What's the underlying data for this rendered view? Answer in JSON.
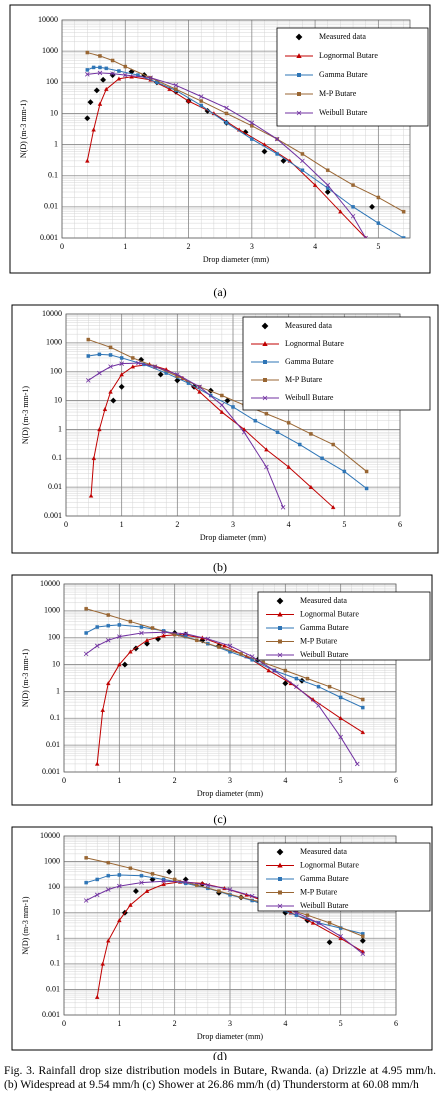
{
  "chart_data": [
    {
      "type": "line",
      "panel_label": "(a)",
      "xlabel": "Drop diameter (mm)",
      "ylabel": "N(D) (m-3 mm-1)",
      "xlim": [
        0,
        5.5
      ],
      "xticks": [
        0,
        1,
        2,
        3,
        4,
        5
      ],
      "ylim": [
        0.001,
        10000
      ],
      "yticks": [
        10000,
        1000,
        100,
        10,
        1,
        0.1,
        0.01,
        0.001
      ],
      "log_y": true,
      "grid": true,
      "legend": "upper right",
      "series": [
        {
          "name": "Measured data",
          "color": "#000000",
          "marker": "diamond",
          "line": false,
          "x": [
            0.4,
            0.45,
            0.55,
            0.65,
            0.8,
            1.1,
            1.3,
            1.5,
            1.8,
            2.0,
            2.3,
            2.6,
            2.9,
            3.2,
            3.5,
            4.2,
            4.9
          ],
          "values": [
            7,
            23,
            55,
            120,
            170,
            220,
            170,
            100,
            50,
            25,
            12,
            5,
            2.5,
            0.6,
            0.3,
            0.03,
            0.01
          ]
        },
        {
          "name": "Lognormal Butare",
          "color": "#c00000",
          "marker": "triangle",
          "line": true,
          "x": [
            0.4,
            0.5,
            0.6,
            0.7,
            0.9,
            1.1,
            1.4,
            1.7,
            2.0,
            2.4,
            2.8,
            3.2,
            3.6,
            4.0,
            4.4,
            4.8
          ],
          "values": [
            0.3,
            3,
            20,
            60,
            130,
            150,
            120,
            60,
            25,
            10,
            3,
            1,
            0.3,
            0.05,
            0.007,
            0.001
          ]
        },
        {
          "name": "Gamma Butare",
          "color": "#2e75b6",
          "marker": "square",
          "line": true,
          "x": [
            0.4,
            0.5,
            0.6,
            0.7,
            0.9,
            1.2,
            1.5,
            1.8,
            2.2,
            2.6,
            3.0,
            3.4,
            3.8,
            4.2,
            4.6,
            5.0,
            5.4
          ],
          "values": [
            250,
            300,
            300,
            280,
            230,
            170,
            100,
            55,
            18,
            5,
            1.5,
            0.5,
            0.15,
            0.04,
            0.01,
            0.003,
            0.001
          ]
        },
        {
          "name": "M-P Butare",
          "color": "#996633",
          "marker": "square",
          "line": true,
          "x": [
            0.4,
            0.6,
            0.8,
            1.0,
            1.4,
            1.8,
            2.2,
            2.6,
            3.0,
            3.4,
            3.8,
            4.2,
            4.6,
            5.0,
            5.4
          ],
          "values": [
            900,
            700,
            500,
            320,
            140,
            60,
            25,
            10,
            4,
            1.5,
            0.5,
            0.15,
            0.05,
            0.02,
            0.007
          ]
        },
        {
          "name": "Weibull Butare",
          "color": "#7030a0",
          "marker": "cross",
          "line": true,
          "x": [
            0.4,
            0.6,
            0.8,
            1.0,
            1.4,
            1.8,
            2.2,
            2.6,
            3.0,
            3.4,
            3.8,
            4.2,
            4.6,
            4.8
          ],
          "values": [
            180,
            200,
            190,
            170,
            140,
            80,
            35,
            15,
            5,
            1.5,
            0.3,
            0.05,
            0.005,
            0.001
          ]
        }
      ]
    },
    {
      "type": "line",
      "panel_label": "(b)",
      "xlabel": "Drop diameter (mm)",
      "ylabel": "N(D) (m-3 mm-1)",
      "xlim": [
        0,
        6
      ],
      "xticks": [
        0,
        1,
        2,
        3,
        4,
        5,
        6
      ],
      "ylim": [
        0.001,
        10000
      ],
      "yticks": [
        10000,
        1000,
        100,
        10,
        1,
        0.1,
        0.01,
        0.001
      ],
      "log_y": true,
      "grid": true,
      "legend": "upper right",
      "series": [
        {
          "name": "Measured data",
          "color": "#000000",
          "marker": "diamond",
          "line": false,
          "x": [
            0.85,
            1.0,
            1.35,
            1.7,
            2.0,
            2.3,
            2.6,
            2.9
          ],
          "values": [
            10,
            30,
            260,
            80,
            50,
            30,
            22,
            10
          ]
        },
        {
          "name": "Lognormal Butare",
          "color": "#c00000",
          "marker": "triangle",
          "line": true,
          "x": [
            0.45,
            0.5,
            0.6,
            0.7,
            0.8,
            1.0,
            1.2,
            1.5,
            1.8,
            2.1,
            2.4,
            2.8,
            3.2,
            3.6,
            4.0,
            4.4,
            4.8
          ],
          "values": [
            0.005,
            0.1,
            1,
            5,
            20,
            80,
            150,
            180,
            120,
            60,
            20,
            4,
            1,
            0.2,
            0.05,
            0.01,
            0.002
          ]
        },
        {
          "name": "Gamma Butare",
          "color": "#2e75b6",
          "marker": "square",
          "line": true,
          "x": [
            0.4,
            0.6,
            0.8,
            1.0,
            1.4,
            1.8,
            2.2,
            2.6,
            3.0,
            3.4,
            3.8,
            4.2,
            4.6,
            5.0,
            5.4
          ],
          "values": [
            350,
            400,
            380,
            300,
            180,
            90,
            40,
            15,
            6,
            2,
            0.8,
            0.3,
            0.1,
            0.035,
            0.009
          ]
        },
        {
          "name": "M-P Butare",
          "color": "#996633",
          "marker": "square",
          "line": true,
          "x": [
            0.4,
            0.8,
            1.2,
            1.6,
            2.0,
            2.4,
            2.8,
            3.2,
            3.6,
            4.0,
            4.4,
            4.8,
            5.4
          ],
          "values": [
            1300,
            700,
            300,
            150,
            70,
            30,
            15,
            7,
            3.5,
            1.7,
            0.7,
            0.3,
            0.035
          ]
        },
        {
          "name": "Weibull Butare",
          "color": "#7030a0",
          "marker": "cross",
          "line": true,
          "x": [
            0.4,
            0.6,
            0.8,
            1.0,
            1.3,
            1.6,
            2.0,
            2.4,
            2.8,
            3.2,
            3.6,
            3.9
          ],
          "values": [
            50,
            90,
            150,
            190,
            200,
            150,
            80,
            30,
            7,
            0.8,
            0.05,
            0.002
          ]
        }
      ]
    },
    {
      "type": "line",
      "panel_label": "(c)",
      "xlabel": "Drop diameter (mm)",
      "ylabel": "N(D) (m-3 mm-1)",
      "xlim": [
        0,
        6
      ],
      "xticks": [
        0,
        1,
        2,
        3,
        4,
        5,
        6
      ],
      "ylim": [
        0.001,
        10000
      ],
      "yticks": [
        10000,
        1000,
        100,
        10,
        1,
        0.1,
        0.01,
        0.001
      ],
      "log_y": true,
      "grid": true,
      "legend": "upper right",
      "series": [
        {
          "name": "Measured data",
          "color": "#000000",
          "marker": "diamond",
          "line": false,
          "x": [
            1.1,
            1.3,
            1.5,
            1.7,
            2.0,
            2.2,
            2.5,
            2.8,
            3.5,
            4.0,
            4.3
          ],
          "values": [
            10,
            40,
            60,
            90,
            150,
            130,
            80,
            50,
            15,
            2,
            2.5
          ]
        },
        {
          "name": "Lognormal Butare",
          "color": "#c00000",
          "marker": "triangle",
          "line": true,
          "x": [
            0.6,
            0.7,
            0.8,
            1.0,
            1.2,
            1.5,
            1.8,
            2.1,
            2.5,
            2.9,
            3.3,
            3.7,
            4.1,
            4.5,
            5.0,
            5.4
          ],
          "values": [
            0.002,
            0.2,
            2,
            10,
            30,
            80,
            120,
            130,
            100,
            50,
            20,
            6,
            2,
            0.5,
            0.1,
            0.03
          ]
        },
        {
          "name": "Gamma Butare",
          "color": "#2e75b6",
          "marker": "square",
          "line": true,
          "x": [
            0.4,
            0.6,
            0.8,
            1.0,
            1.4,
            1.8,
            2.2,
            2.6,
            3.0,
            3.4,
            3.8,
            4.2,
            4.6,
            5.0,
            5.4
          ],
          "values": [
            150,
            250,
            280,
            300,
            250,
            180,
            110,
            60,
            30,
            15,
            6,
            3,
            1.5,
            0.6,
            0.25
          ]
        },
        {
          "name": "M-P Butare",
          "color": "#996633",
          "marker": "square",
          "line": true,
          "x": [
            0.4,
            0.8,
            1.2,
            1.6,
            2.0,
            2.4,
            2.8,
            3.2,
            3.6,
            4.0,
            4.4,
            4.8,
            5.4
          ],
          "values": [
            1200,
            700,
            400,
            230,
            130,
            80,
            45,
            25,
            12,
            6,
            3,
            1.5,
            0.5
          ]
        },
        {
          "name": "Weibull Butare",
          "color": "#7030a0",
          "marker": "cross",
          "line": true,
          "x": [
            0.4,
            0.6,
            0.8,
            1.0,
            1.4,
            1.8,
            2.2,
            2.6,
            3.0,
            3.4,
            3.8,
            4.2,
            4.6,
            5.0,
            5.3
          ],
          "values": [
            25,
            50,
            80,
            110,
            150,
            160,
            140,
            90,
            50,
            20,
            6,
            1.5,
            0.3,
            0.02,
            0.002
          ]
        }
      ]
    },
    {
      "type": "line",
      "panel_label": "(d)",
      "xlabel": "Drop diameter (mm)",
      "ylabel": "N(D) (m-3 mm-1)",
      "xlim": [
        0,
        6
      ],
      "xticks": [
        0,
        1,
        2,
        3,
        4,
        5,
        6
      ],
      "ylim": [
        0.001,
        10000
      ],
      "yticks": [
        10000,
        1000,
        100,
        10,
        1,
        0.1,
        0.01,
        0.001
      ],
      "log_y": true,
      "grid": true,
      "legend": "upper right",
      "series": [
        {
          "name": "Measured data",
          "color": "#000000",
          "marker": "diamond",
          "line": false,
          "x": [
            1.1,
            1.3,
            1.6,
            1.9,
            2.2,
            2.5,
            2.8,
            3.2,
            3.6,
            4.0,
            4.4,
            4.8,
            5.4
          ],
          "values": [
            10,
            70,
            200,
            400,
            200,
            130,
            60,
            40,
            15,
            10,
            5,
            0.7,
            0.8
          ]
        },
        {
          "name": "Lognormal Butare",
          "color": "#c00000",
          "marker": "triangle",
          "line": true,
          "x": [
            0.6,
            0.7,
            0.8,
            1.0,
            1.2,
            1.5,
            1.8,
            2.1,
            2.5,
            2.9,
            3.3,
            3.7,
            4.1,
            4.5,
            5.0,
            5.4
          ],
          "values": [
            0.005,
            0.1,
            0.8,
            5,
            20,
            70,
            130,
            160,
            140,
            90,
            50,
            25,
            10,
            4,
            1,
            0.3
          ]
        },
        {
          "name": "Gamma Butare",
          "color": "#2e75b6",
          "marker": "square",
          "line": true,
          "x": [
            0.4,
            0.6,
            0.8,
            1.0,
            1.4,
            1.8,
            2.2,
            2.6,
            3.0,
            3.4,
            3.8,
            4.2,
            4.6,
            5.0,
            5.4
          ],
          "values": [
            150,
            200,
            280,
            300,
            280,
            200,
            140,
            90,
            50,
            30,
            15,
            8,
            4,
            2.5,
            1.5
          ]
        },
        {
          "name": "M-P Butare",
          "color": "#996633",
          "marker": "square",
          "line": true,
          "x": [
            0.4,
            0.8,
            1.2,
            1.6,
            2.0,
            2.4,
            2.8,
            3.2,
            3.6,
            4.0,
            4.4,
            4.8,
            5.4
          ],
          "values": [
            1400,
            900,
            550,
            330,
            200,
            120,
            70,
            40,
            25,
            15,
            8,
            4,
            1.2
          ]
        },
        {
          "name": "Weibull Butare",
          "color": "#7030a0",
          "marker": "cross",
          "line": true,
          "x": [
            0.4,
            0.6,
            0.8,
            1.0,
            1.4,
            1.8,
            2.2,
            2.6,
            3.0,
            3.4,
            3.8,
            4.2,
            4.6,
            5.0,
            5.4
          ],
          "values": [
            30,
            50,
            80,
            110,
            150,
            170,
            160,
            120,
            80,
            45,
            25,
            10,
            4,
            1.2,
            0.25
          ]
        }
      ]
    }
  ],
  "caption": "Fig. 3. Rainfall drop size distribution models in Butare, Rwanda. (a) Drizzle at 4.95 mm/h. (b) Widespread at 9.54 mm/h (c) Shower at 26.86 mm/h (d) Thunderstorm at 60.08 mm/h"
}
